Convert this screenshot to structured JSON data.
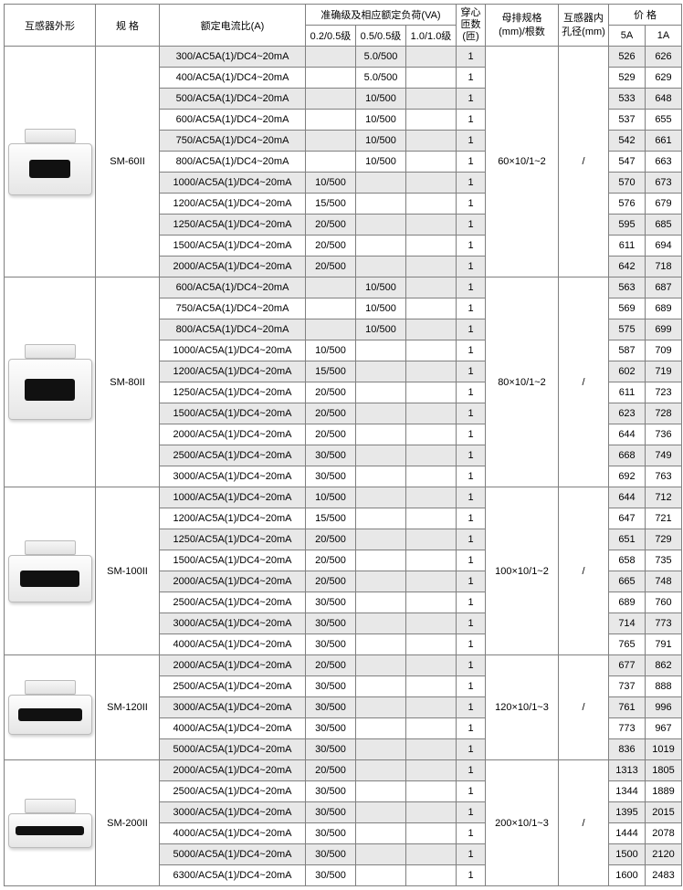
{
  "headers": {
    "shape": "互感器外形",
    "spec": "规 格",
    "ratio": "额定电流比(A)",
    "accuracy_group": "准确级及相应额定负荷(VA)",
    "acc_a": "0.2/0.5级",
    "acc_b": "0.5/0.5级",
    "acc_c": "1.0/1.0级",
    "turns": "穿心",
    "turns2": "匝数",
    "turns3": "(匝)",
    "bus": "母排规格",
    "bus2": "(mm)/根数",
    "hole": "互感器内",
    "hole2": "孔径(mm)",
    "price": "价 格",
    "price5": "5A",
    "price1": "1A"
  },
  "groups": [
    {
      "spec": "SM-60II",
      "bus": "60×10/1~2",
      "hole": "/",
      "img": {
        "bodyH": 55,
        "holeW": 45,
        "holeH": 20
      },
      "rows": [
        {
          "ratio": "300/AC5A(1)/DC4~20mA",
          "a": "",
          "b": "5.0/500",
          "c": "",
          "turns": "1",
          "p5": "526",
          "p1": "626"
        },
        {
          "ratio": "400/AC5A(1)/DC4~20mA",
          "a": "",
          "b": "5.0/500",
          "c": "",
          "turns": "1",
          "p5": "529",
          "p1": "629"
        },
        {
          "ratio": "500/AC5A(1)/DC4~20mA",
          "a": "",
          "b": "10/500",
          "c": "",
          "turns": "1",
          "p5": "533",
          "p1": "648"
        },
        {
          "ratio": "600/AC5A(1)/DC4~20mA",
          "a": "",
          "b": "10/500",
          "c": "",
          "turns": "1",
          "p5": "537",
          "p1": "655"
        },
        {
          "ratio": "750/AC5A(1)/DC4~20mA",
          "a": "",
          "b": "10/500",
          "c": "",
          "turns": "1",
          "p5": "542",
          "p1": "661"
        },
        {
          "ratio": "800/AC5A(1)/DC4~20mA",
          "a": "",
          "b": "10/500",
          "c": "",
          "turns": "1",
          "p5": "547",
          "p1": "663"
        },
        {
          "ratio": "1000/AC5A(1)/DC4~20mA",
          "a": "10/500",
          "b": "",
          "c": "",
          "turns": "1",
          "p5": "570",
          "p1": "673"
        },
        {
          "ratio": "1200/AC5A(1)/DC4~20mA",
          "a": "15/500",
          "b": "",
          "c": "",
          "turns": "1",
          "p5": "576",
          "p1": "679"
        },
        {
          "ratio": "1250/AC5A(1)/DC4~20mA",
          "a": "20/500",
          "b": "",
          "c": "",
          "turns": "1",
          "p5": "595",
          "p1": "685"
        },
        {
          "ratio": "1500/AC5A(1)/DC4~20mA",
          "a": "20/500",
          "b": "",
          "c": "",
          "turns": "1",
          "p5": "611",
          "p1": "694"
        },
        {
          "ratio": "2000/AC5A(1)/DC4~20mA",
          "a": "20/500",
          "b": "",
          "c": "",
          "turns": "1",
          "p5": "642",
          "p1": "718"
        }
      ]
    },
    {
      "spec": "SM-80II",
      "bus": "80×10/1~2",
      "hole": "/",
      "img": {
        "bodyH": 65,
        "holeW": 55,
        "holeH": 24
      },
      "rows": [
        {
          "ratio": "600/AC5A(1)/DC4~20mA",
          "a": "",
          "b": "10/500",
          "c": "",
          "turns": "1",
          "p5": "563",
          "p1": "687"
        },
        {
          "ratio": "750/AC5A(1)/DC4~20mA",
          "a": "",
          "b": "10/500",
          "c": "",
          "turns": "1",
          "p5": "569",
          "p1": "689"
        },
        {
          "ratio": "800/AC5A(1)/DC4~20mA",
          "a": "",
          "b": "10/500",
          "c": "",
          "turns": "1",
          "p5": "575",
          "p1": "699"
        },
        {
          "ratio": "1000/AC5A(1)/DC4~20mA",
          "a": "10/500",
          "b": "",
          "c": "",
          "turns": "1",
          "p5": "587",
          "p1": "709"
        },
        {
          "ratio": "1200/AC5A(1)/DC4~20mA",
          "a": "15/500",
          "b": "",
          "c": "",
          "turns": "1",
          "p5": "602",
          "p1": "719"
        },
        {
          "ratio": "1250/AC5A(1)/DC4~20mA",
          "a": "20/500",
          "b": "",
          "c": "",
          "turns": "1",
          "p5": "611",
          "p1": "723"
        },
        {
          "ratio": "1500/AC5A(1)/DC4~20mA",
          "a": "20/500",
          "b": "",
          "c": "",
          "turns": "1",
          "p5": "623",
          "p1": "728"
        },
        {
          "ratio": "2000/AC5A(1)/DC4~20mA",
          "a": "20/500",
          "b": "",
          "c": "",
          "turns": "1",
          "p5": "644",
          "p1": "736"
        },
        {
          "ratio": "2500/AC5A(1)/DC4~20mA",
          "a": "30/500",
          "b": "",
          "c": "",
          "turns": "1",
          "p5": "668",
          "p1": "749"
        },
        {
          "ratio": "3000/AC5A(1)/DC4~20mA",
          "a": "30/500",
          "b": "",
          "c": "",
          "turns": "1",
          "p5": "692",
          "p1": "763"
        }
      ]
    },
    {
      "spec": "SM-100II",
      "bus": "100×10/1~2",
      "hole": "/",
      "img": {
        "bodyH": 50,
        "holeW": 65,
        "holeH": 18
      },
      "rows": [
        {
          "ratio": "1000/AC5A(1)/DC4~20mA",
          "a": "10/500",
          "b": "",
          "c": "",
          "turns": "1",
          "p5": "644",
          "p1": "712"
        },
        {
          "ratio": "1200/AC5A(1)/DC4~20mA",
          "a": "15/500",
          "b": "",
          "c": "",
          "turns": "1",
          "p5": "647",
          "p1": "721"
        },
        {
          "ratio": "1250/AC5A(1)/DC4~20mA",
          "a": "20/500",
          "b": "",
          "c": "",
          "turns": "1",
          "p5": "651",
          "p1": "729"
        },
        {
          "ratio": "1500/AC5A(1)/DC4~20mA",
          "a": "20/500",
          "b": "",
          "c": "",
          "turns": "1",
          "p5": "658",
          "p1": "735"
        },
        {
          "ratio": "2000/AC5A(1)/DC4~20mA",
          "a": "20/500",
          "b": "",
          "c": "",
          "turns": "1",
          "p5": "665",
          "p1": "748"
        },
        {
          "ratio": "2500/AC5A(1)/DC4~20mA",
          "a": "30/500",
          "b": "",
          "c": "",
          "turns": "1",
          "p5": "689",
          "p1": "760"
        },
        {
          "ratio": "3000/AC5A(1)/DC4~20mA",
          "a": "30/500",
          "b": "",
          "c": "",
          "turns": "1",
          "p5": "714",
          "p1": "773"
        },
        {
          "ratio": "4000/AC5A(1)/DC4~20mA",
          "a": "30/500",
          "b": "",
          "c": "",
          "turns": "1",
          "p5": "765",
          "p1": "791"
        }
      ]
    },
    {
      "spec": "SM-120II",
      "bus": "120×10/1~3",
      "hole": "/",
      "img": {
        "bodyH": 42,
        "holeW": 70,
        "holeH": 14
      },
      "rows": [
        {
          "ratio": "2000/AC5A(1)/DC4~20mA",
          "a": "20/500",
          "b": "",
          "c": "",
          "turns": "1",
          "p5": "677",
          "p1": "862"
        },
        {
          "ratio": "2500/AC5A(1)/DC4~20mA",
          "a": "30/500",
          "b": "",
          "c": "",
          "turns": "1",
          "p5": "737",
          "p1": "888"
        },
        {
          "ratio": "3000/AC5A(1)/DC4~20mA",
          "a": "30/500",
          "b": "",
          "c": "",
          "turns": "1",
          "p5": "761",
          "p1": "996"
        },
        {
          "ratio": "4000/AC5A(1)/DC4~20mA",
          "a": "30/500",
          "b": "",
          "c": "",
          "turns": "1",
          "p5": "773",
          "p1": "967"
        },
        {
          "ratio": "5000/AC5A(1)/DC4~20mA",
          "a": "30/500",
          "b": "",
          "c": "",
          "turns": "1",
          "p5": "836",
          "p1": "1019"
        }
      ]
    },
    {
      "spec": "SM-200II",
      "bus": "200×10/1~3",
      "hole": "/",
      "img": {
        "bodyH": 36,
        "holeW": 75,
        "holeH": 10
      },
      "rows": [
        {
          "ratio": "2000/AC5A(1)/DC4~20mA",
          "a": "20/500",
          "b": "",
          "c": "",
          "turns": "1",
          "p5": "1313",
          "p1": "1805"
        },
        {
          "ratio": "2500/AC5A(1)/DC4~20mA",
          "a": "30/500",
          "b": "",
          "c": "",
          "turns": "1",
          "p5": "1344",
          "p1": "1889"
        },
        {
          "ratio": "3000/AC5A(1)/DC4~20mA",
          "a": "30/500",
          "b": "",
          "c": "",
          "turns": "1",
          "p5": "1395",
          "p1": "2015"
        },
        {
          "ratio": "4000/AC5A(1)/DC4~20mA",
          "a": "30/500",
          "b": "",
          "c": "",
          "turns": "1",
          "p5": "1444",
          "p1": "2078"
        },
        {
          "ratio": "5000/AC5A(1)/DC4~20mA",
          "a": "30/500",
          "b": "",
          "c": "",
          "turns": "1",
          "p5": "1500",
          "p1": "2120"
        },
        {
          "ratio": "6300/AC5A(1)/DC4~20mA",
          "a": "30/500",
          "b": "",
          "c": "",
          "turns": "1",
          "p5": "1600",
          "p1": "2483"
        }
      ]
    }
  ]
}
